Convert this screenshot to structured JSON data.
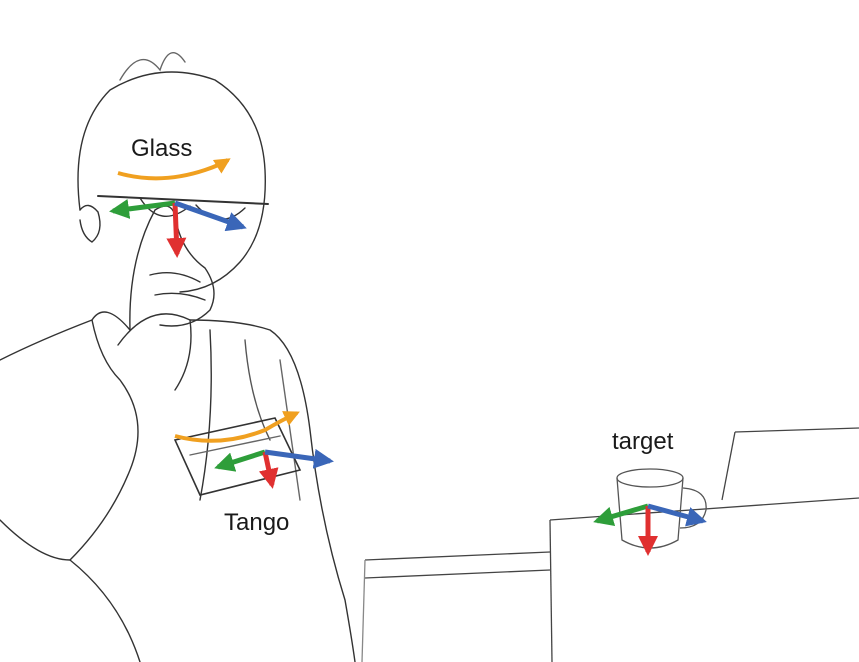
{
  "labels": {
    "glass": "Glass",
    "tango": "Tango",
    "target": "target"
  },
  "frames": [
    {
      "name": "glass",
      "rotation_arrow": true
    },
    {
      "name": "tango",
      "rotation_arrow": true
    },
    {
      "name": "target",
      "rotation_arrow": false
    }
  ],
  "colors": {
    "axis_x": "#2e9e3a",
    "axis_y": "#e03030",
    "axis_z": "#3a66b8",
    "rotation": "#f0a020",
    "sketch": "#333333",
    "background": "#ffffff"
  }
}
